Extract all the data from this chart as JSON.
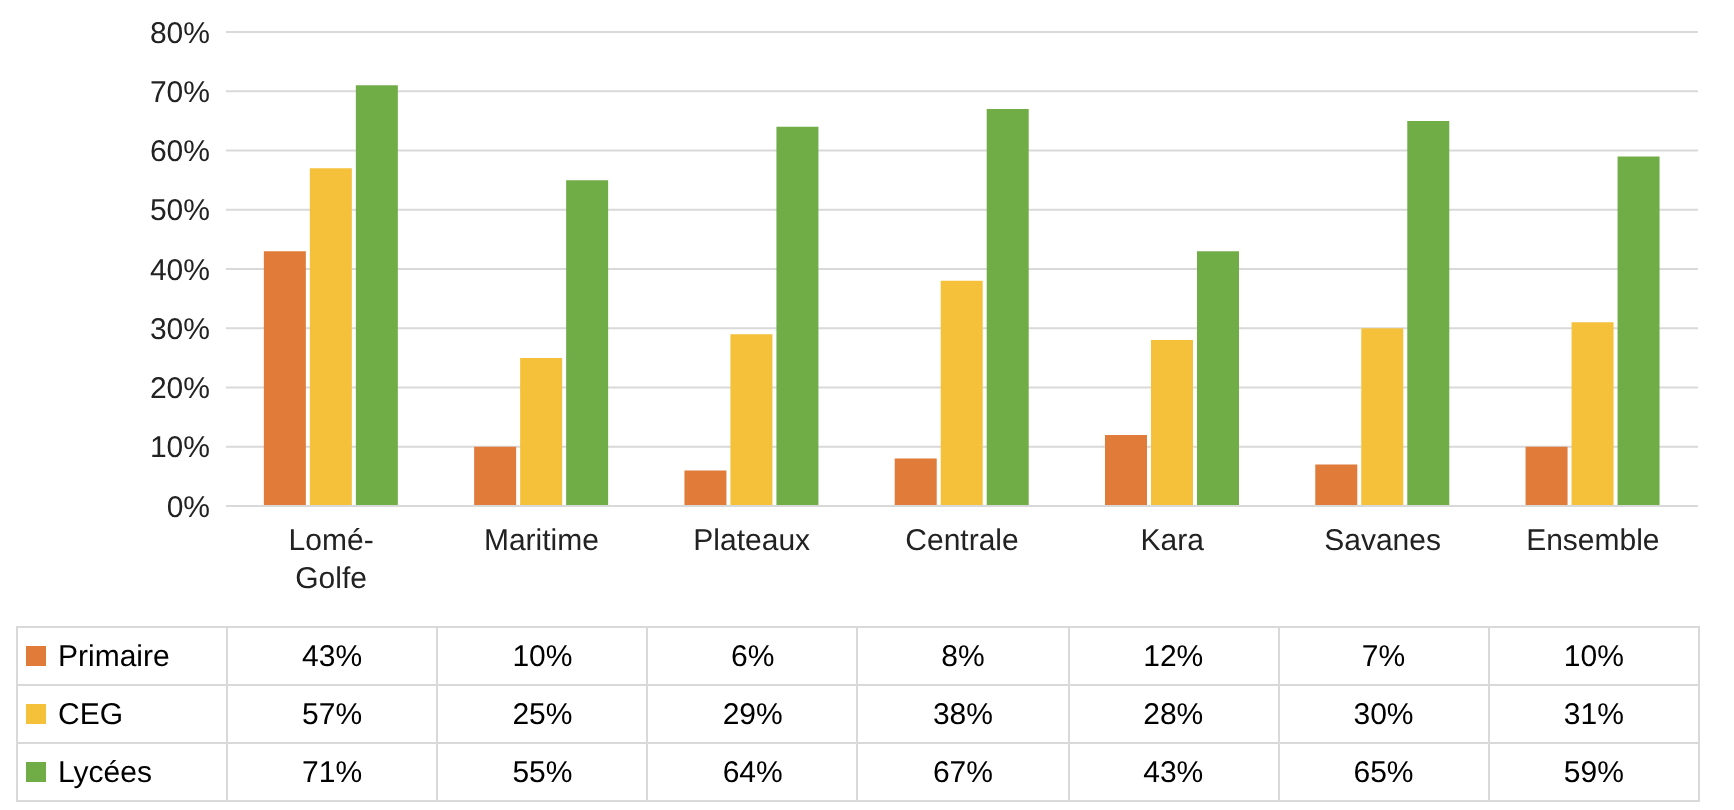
{
  "chart_data": {
    "type": "bar",
    "categories": [
      "Lomé-Golfe",
      "Maritime",
      "Plateaux",
      "Centrale",
      "Kara",
      "Savanes",
      "Ensemble"
    ],
    "series": [
      {
        "name": "Primaire",
        "color": "#e07b39",
        "values": [
          43,
          10,
          6,
          8,
          12,
          7,
          10
        ],
        "value_labels": [
          "43%",
          "10%",
          "6%",
          "8%",
          "12%",
          "7%",
          "10%"
        ]
      },
      {
        "name": "CEG",
        "color": "#f5c13b",
        "values": [
          57,
          25,
          29,
          38,
          28,
          30,
          31
        ],
        "value_labels": [
          "57%",
          "25%",
          "29%",
          "38%",
          "28%",
          "30%",
          "31%"
        ]
      },
      {
        "name": "Lycées",
        "color": "#70ad47",
        "values": [
          71,
          55,
          64,
          67,
          43,
          65,
          59
        ],
        "value_labels": [
          "71%",
          "55%",
          "64%",
          "67%",
          "43%",
          "65%",
          "59%"
        ]
      }
    ],
    "ylim": [
      0,
      80
    ],
    "yticks": [
      {
        "value": 0,
        "label": "0%"
      },
      {
        "value": 10,
        "label": "10%"
      },
      {
        "value": 20,
        "label": "20%"
      },
      {
        "value": 30,
        "label": "30%"
      },
      {
        "value": 40,
        "label": "40%"
      },
      {
        "value": 50,
        "label": "50%"
      },
      {
        "value": 60,
        "label": "60%"
      },
      {
        "value": 70,
        "label": "70%"
      },
      {
        "value": 80,
        "label": "80%"
      }
    ],
    "grid": "y",
    "legend": "bottom"
  }
}
